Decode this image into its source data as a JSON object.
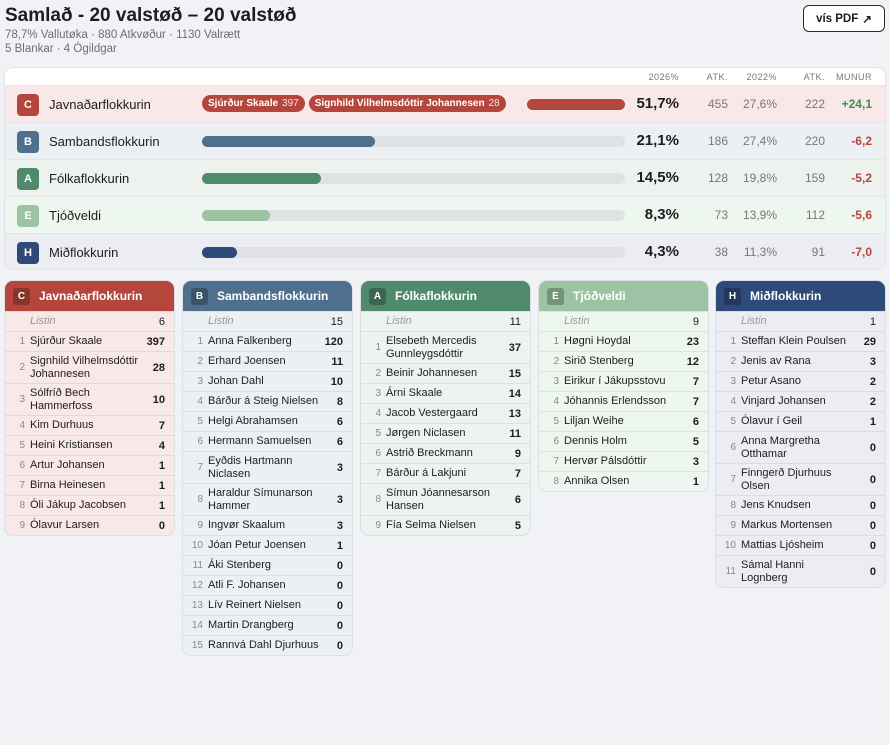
{
  "header": {
    "title": "Samlað - 20 valstøð – 20 valstøð",
    "stats_line1": "78,7% Vallutøka · 880 Atkvøður · 1130 Valrætt",
    "stats_line2": "5 Blankar · 4 Ógildgar",
    "pdf_label": "vís PDF",
    "pdf_icon": "↗"
  },
  "summary": {
    "columns": {
      "pct2026": "2026%",
      "atk": "ATK.",
      "pct2022": "2022%",
      "atk2": "ATK.",
      "munur": "MUNUR"
    },
    "parties": [
      {
        "letter": "C",
        "name": "Javnaðarflokkurin",
        "color": "#b4463c",
        "rowbg": "#f8e8e7",
        "share": 51.7,
        "pct": "51,7%",
        "atk": "455",
        "pct2022": "27,6%",
        "atk2022": "222",
        "munur": "+24,1",
        "positive": true,
        "chips": [
          {
            "name": "Sjúrður Skaale",
            "votes": "397"
          },
          {
            "name": "Signhild Vilhelmsdóttir Johannesen",
            "votes": "28"
          }
        ]
      },
      {
        "letter": "B",
        "name": "Sambandsflokkurin",
        "color": "#4f6f8e",
        "rowbg": "#edf0f3",
        "share": 21.1,
        "pct": "21,1%",
        "atk": "186",
        "pct2022": "27,4%",
        "atk2022": "220",
        "munur": "-6,2",
        "positive": false
      },
      {
        "letter": "A",
        "name": "Fólkaflokkurin",
        "color": "#4f8a6c",
        "rowbg": "#edf2ef",
        "share": 14.5,
        "pct": "14,5%",
        "atk": "128",
        "pct2022": "19,8%",
        "atk2022": "159",
        "munur": "-5,2",
        "positive": false
      },
      {
        "letter": "E",
        "name": "Tjóðveldi",
        "color": "#9cc3a4",
        "rowbg": "#eef7ef",
        "share": 8.3,
        "pct": "8,3%",
        "atk": "73",
        "pct2022": "13,9%",
        "atk2022": "112",
        "munur": "-5,6",
        "positive": false
      },
      {
        "letter": "H",
        "name": "Miðflokkurin",
        "color": "#2e4a78",
        "rowbg": "#ecedf2",
        "share": 4.3,
        "pct": "4,3%",
        "atk": "38",
        "pct2022": "11,3%",
        "atk2022": "91",
        "munur": "-7,0",
        "positive": false
      }
    ]
  },
  "lists": [
    {
      "letter": "C",
      "name": "Javnaðarflokkurin",
      "color": "#b4463c",
      "bg": "#f8e8e7",
      "list_label": "Listin",
      "list_votes": "6",
      "candidates": [
        [
          "1",
          "Sjúrður Skaale",
          "397"
        ],
        [
          "2",
          "Signhild Vilhelmsdóttir Johannesen",
          "28"
        ],
        [
          "3",
          "Sólfríð Bech Hammerfoss",
          "10"
        ],
        [
          "4",
          "Kim Durhuus",
          "7"
        ],
        [
          "5",
          "Heini Kristiansen",
          "4"
        ],
        [
          "6",
          "Artur Johansen",
          "1"
        ],
        [
          "7",
          "Birna Heinesen",
          "1"
        ],
        [
          "8",
          "Óli Jákup Jacobsen",
          "1"
        ],
        [
          "9",
          "Ólavur Larsen",
          "0"
        ]
      ]
    },
    {
      "letter": "B",
      "name": "Sambandsflokkurin",
      "color": "#4f6f8e",
      "bg": "#edf0f3",
      "list_label": "Listin",
      "list_votes": "15",
      "candidates": [
        [
          "1",
          "Anna Falkenberg",
          "120"
        ],
        [
          "2",
          "Erhard Joensen",
          "11"
        ],
        [
          "3",
          "Johan Dahl",
          "10"
        ],
        [
          "4",
          "Bárður á Steig Nielsen",
          "8"
        ],
        [
          "5",
          "Helgi Abrahamsen",
          "6"
        ],
        [
          "6",
          "Hermann Samuelsen",
          "6"
        ],
        [
          "7",
          "Eyðdis Hartmann Niclasen",
          "3"
        ],
        [
          "8",
          "Haraldur Símunarson Hammer",
          "3"
        ],
        [
          "9",
          "Ingvør Skaalum",
          "3"
        ],
        [
          "10",
          "Jóan Petur Joensen",
          "1"
        ],
        [
          "11",
          "Áki Stenberg",
          "0"
        ],
        [
          "12",
          "Atli F. Johansen",
          "0"
        ],
        [
          "13",
          "Lív Reinert Nielsen",
          "0"
        ],
        [
          "14",
          "Martin Drangberg",
          "0"
        ],
        [
          "15",
          "Rannvá Dahl Djurhuus",
          "0"
        ]
      ]
    },
    {
      "letter": "A",
      "name": "Fólkaflokkurin",
      "color": "#4f8a6c",
      "bg": "#edf3ef",
      "list_label": "Listin",
      "list_votes": "11",
      "candidates": [
        [
          "1",
          "Elsebeth Mercedis Gunnleygsdóttir",
          "37"
        ],
        [
          "2",
          "Beinir Johannesen",
          "15"
        ],
        [
          "3",
          "Árni Skaale",
          "14"
        ],
        [
          "4",
          "Jacob Vestergaard",
          "13"
        ],
        [
          "5",
          "Jørgen Niclasen",
          "11"
        ],
        [
          "6",
          "Astrið Breckmann",
          "9"
        ],
        [
          "7",
          "Bárður á Lakjuni",
          "7"
        ],
        [
          "8",
          "Símun Jóannesarson Hansen",
          "6"
        ],
        [
          "9",
          "Fía Selma Nielsen",
          "5"
        ]
      ]
    },
    {
      "letter": "E",
      "name": "Tjóðveldi",
      "color": "#9cc3a4",
      "bg": "#eef7ef",
      "list_label": "Listin",
      "list_votes": "9",
      "candidates": [
        [
          "1",
          "Høgni Hoydal",
          "23"
        ],
        [
          "2",
          "Sirið Stenberg",
          "12"
        ],
        [
          "3",
          "Eirikur í Jákupsstovu",
          "7"
        ],
        [
          "4",
          "Jóhannis Erlendsson",
          "7"
        ],
        [
          "5",
          "Liljan Weihe",
          "6"
        ],
        [
          "6",
          "Dennis Holm",
          "5"
        ],
        [
          "7",
          "Hervør Pálsdóttir",
          "3"
        ],
        [
          "8",
          "Annika Olsen",
          "1"
        ]
      ]
    },
    {
      "letter": "H",
      "name": "Miðflokkurin",
      "color": "#2e4a78",
      "bg": "#ecedf2",
      "list_label": "Listin",
      "list_votes": "1",
      "candidates": [
        [
          "1",
          "Steffan Klein Poulsen",
          "29"
        ],
        [
          "2",
          "Jenis av Rana",
          "3"
        ],
        [
          "3",
          "Petur Asano",
          "2"
        ],
        [
          "4",
          "Vinjard Johansen",
          "2"
        ],
        [
          "5",
          "Ólavur í Geil",
          "1"
        ],
        [
          "6",
          "Anna Margretha Otthamar",
          "0"
        ],
        [
          "7",
          "Finngerð Djurhuus Olsen",
          "0"
        ],
        [
          "8",
          "Jens Knudsen",
          "0"
        ],
        [
          "9",
          "Markus Mortensen",
          "0"
        ],
        [
          "10",
          "Mattias Ljósheim",
          "0"
        ],
        [
          "11",
          "Sámal Hanni Lognberg",
          "0"
        ]
      ]
    }
  ]
}
